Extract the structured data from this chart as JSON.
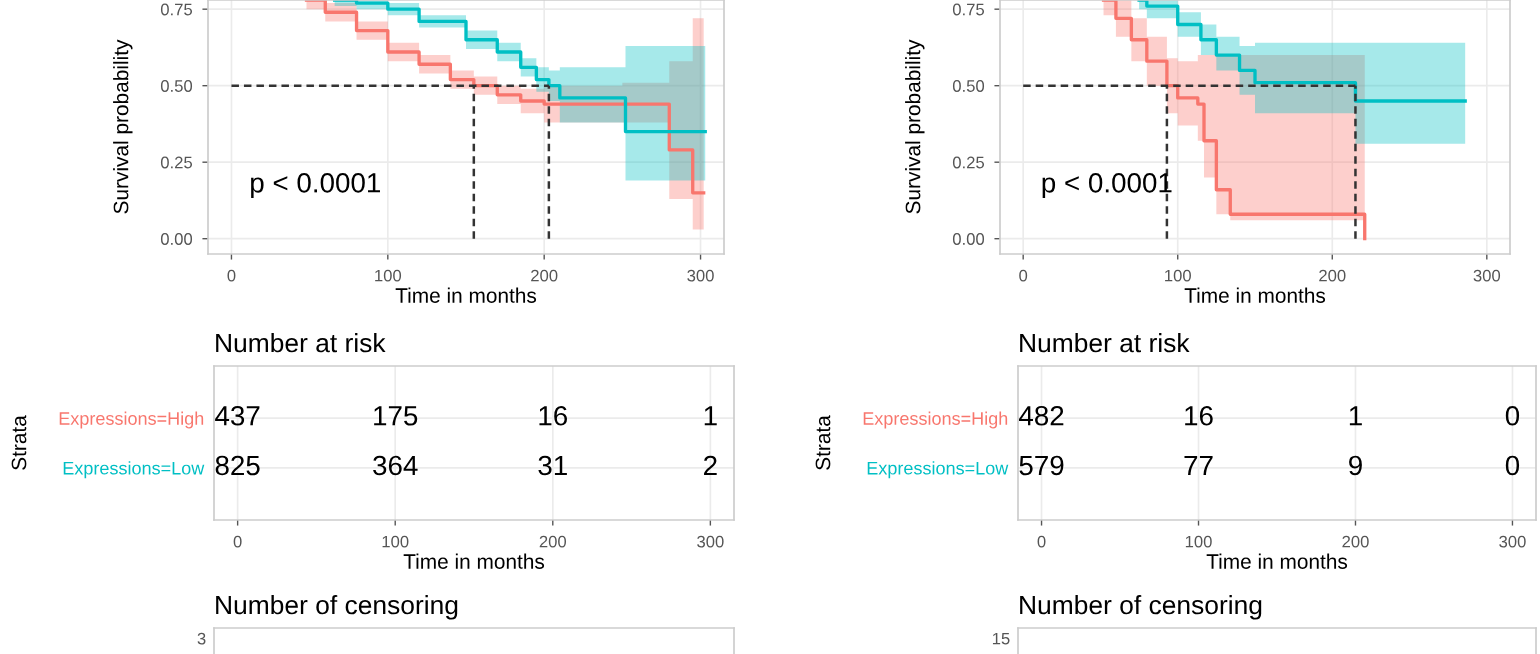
{
  "chart_data": [
    {
      "type": "step",
      "xlabel": "Time in months",
      "ylabel": "Survival probability",
      "xlim": [
        -15,
        315
      ],
      "ylim": [
        -0.05,
        0.78
      ],
      "xticks": [
        0,
        100,
        200,
        300
      ],
      "yticks": [
        {
          "value": 0,
          "label": "0.00"
        },
        {
          "value": 0.25,
          "label": "0.25"
        },
        {
          "value": 0.5,
          "label": "0.50"
        },
        {
          "value": 0.75,
          "label": "0.75"
        }
      ],
      "grid": true,
      "annotations": [
        "p < 0.0001"
      ],
      "ref_lines": [
        {
          "axis": "y",
          "value": 0.5,
          "color": "#333333",
          "line_style": "dashed"
        },
        {
          "axis": "x",
          "value": 155,
          "color": "#333333",
          "line_style": "dashed"
        },
        {
          "axis": "x",
          "value": 203,
          "color": "#333333",
          "line_style": "dashed"
        }
      ],
      "series": [
        {
          "color": "#f8766d",
          "x": [
            48,
            60,
            80,
            100,
            120,
            140,
            155,
            170,
            185,
            200,
            250,
            278,
            280,
            293,
            295,
            302
          ],
          "values": [
            0.78,
            0.74,
            0.68,
            0.61,
            0.57,
            0.52,
            0.5,
            0.47,
            0.45,
            0.44,
            0.44,
            0.44,
            0.29,
            0.29,
            0.15,
            0.15
          ],
          "lower": [
            0.75,
            0.71,
            0.65,
            0.58,
            0.54,
            0.49,
            0.47,
            0.44,
            0.41,
            0.38,
            0.38,
            0.38,
            0.13,
            0.13,
            0.03,
            0.03
          ],
          "upper": [
            0.78,
            0.77,
            0.71,
            0.64,
            0.6,
            0.55,
            0.53,
            0.5,
            0.49,
            0.5,
            0.51,
            0.51,
            0.58,
            0.58,
            0.72,
            0.72
          ]
        },
        {
          "color": "#00bfc4",
          "x": [
            66,
            80,
            100,
            120,
            150,
            170,
            185,
            195,
            203,
            210,
            250,
            252,
            303
          ],
          "values": [
            0.78,
            0.77,
            0.75,
            0.71,
            0.65,
            0.61,
            0.56,
            0.52,
            0.5,
            0.46,
            0.46,
            0.35,
            0.35
          ],
          "lower": [
            0.76,
            0.75,
            0.73,
            0.69,
            0.62,
            0.58,
            0.53,
            0.48,
            0.45,
            0.38,
            0.38,
            0.19,
            0.19
          ],
          "upper": [
            0.78,
            0.78,
            0.77,
            0.73,
            0.68,
            0.64,
            0.59,
            0.56,
            0.55,
            0.56,
            0.56,
            0.63,
            0.63
          ]
        }
      ]
    },
    {
      "type": "step",
      "xlabel": "Time in months",
      "ylabel": "Survival probability",
      "xlim": [
        -15,
        315
      ],
      "ylim": [
        -0.05,
        0.78
      ],
      "xticks": [
        0,
        100,
        200,
        300
      ],
      "yticks": [
        {
          "value": 0,
          "label": "0.00"
        },
        {
          "value": 0.25,
          "label": "0.25"
        },
        {
          "value": 0.5,
          "label": "0.50"
        },
        {
          "value": 0.75,
          "label": "0.75"
        }
      ],
      "grid": true,
      "annotations": [
        "p < 0.0001"
      ],
      "ref_lines": [
        {
          "axis": "y",
          "value": 0.5,
          "color": "#333333",
          "line_style": "dashed"
        },
        {
          "axis": "x",
          "value": 93,
          "color": "#333333",
          "line_style": "dashed"
        },
        {
          "axis": "x",
          "value": 215,
          "color": "#333333",
          "line_style": "dashed"
        }
      ],
      "series": [
        {
          "color": "#f8766d",
          "x": [
            52,
            60,
            70,
            80,
            93,
            100,
            113,
            117,
            125,
            134,
            220,
            221
          ],
          "values": [
            0.78,
            0.72,
            0.65,
            0.58,
            0.5,
            0.46,
            0.44,
            0.32,
            0.16,
            0.08,
            0.08,
            0
          ],
          "lower": [
            0.73,
            0.66,
            0.58,
            0.5,
            0.41,
            0.37,
            0.32,
            0.2,
            0.08,
            0.06,
            0.06,
            0
          ],
          "upper": [
            0.78,
            0.78,
            0.72,
            0.66,
            0.59,
            0.58,
            0.6,
            0.6,
            0.6,
            0.6,
            0.6,
            0
          ]
        },
        {
          "color": "#00bfc4",
          "x": [
            75,
            80,
            100,
            115,
            125,
            140,
            150,
            214,
            215,
            286
          ],
          "values": [
            0.78,
            0.76,
            0.7,
            0.65,
            0.6,
            0.55,
            0.51,
            0.51,
            0.45,
            0.45
          ],
          "lower": [
            0.75,
            0.72,
            0.66,
            0.6,
            0.55,
            0.47,
            0.41,
            0.41,
            0.31,
            0.31
          ],
          "upper": [
            0.78,
            0.78,
            0.74,
            0.7,
            0.66,
            0.63,
            0.64,
            0.64,
            0.64,
            0.64
          ]
        }
      ]
    },
    {
      "type": "heatmap",
      "title": "Number at risk",
      "xlabel": "Time in months",
      "ylabel": "Strata",
      "x": [
        0,
        100,
        200,
        300
      ],
      "xlim": [
        -15,
        315
      ],
      "xticks": [
        0,
        100,
        200,
        300
      ],
      "grid": true,
      "data_labels": true,
      "y_categories": [
        "Expressions=High",
        "Expressions=Low"
      ],
      "colors": [
        "#f8766d",
        "#00bfc4"
      ],
      "cells": [
        [
          437,
          175,
          16,
          1
        ],
        [
          825,
          364,
          31,
          2
        ]
      ]
    },
    {
      "type": "heatmap",
      "title": "Number at risk",
      "xlabel": "Time in months",
      "ylabel": "Strata",
      "x": [
        0,
        100,
        200,
        300
      ],
      "xlim": [
        -15,
        315
      ],
      "xticks": [
        0,
        100,
        200,
        300
      ],
      "grid": true,
      "data_labels": true,
      "y_categories": [
        "Expressions=High",
        "Expressions=Low"
      ],
      "colors": [
        "#f8766d",
        "#00bfc4"
      ],
      "cells": [
        [
          482,
          16,
          1,
          0
        ],
        [
          579,
          77,
          9,
          0
        ]
      ]
    },
    {
      "type": "other",
      "title": "Number of censoring",
      "annotations": [
        "3"
      ]
    },
    {
      "type": "other",
      "title": "Number of censoring",
      "annotations": [
        "15"
      ]
    }
  ]
}
